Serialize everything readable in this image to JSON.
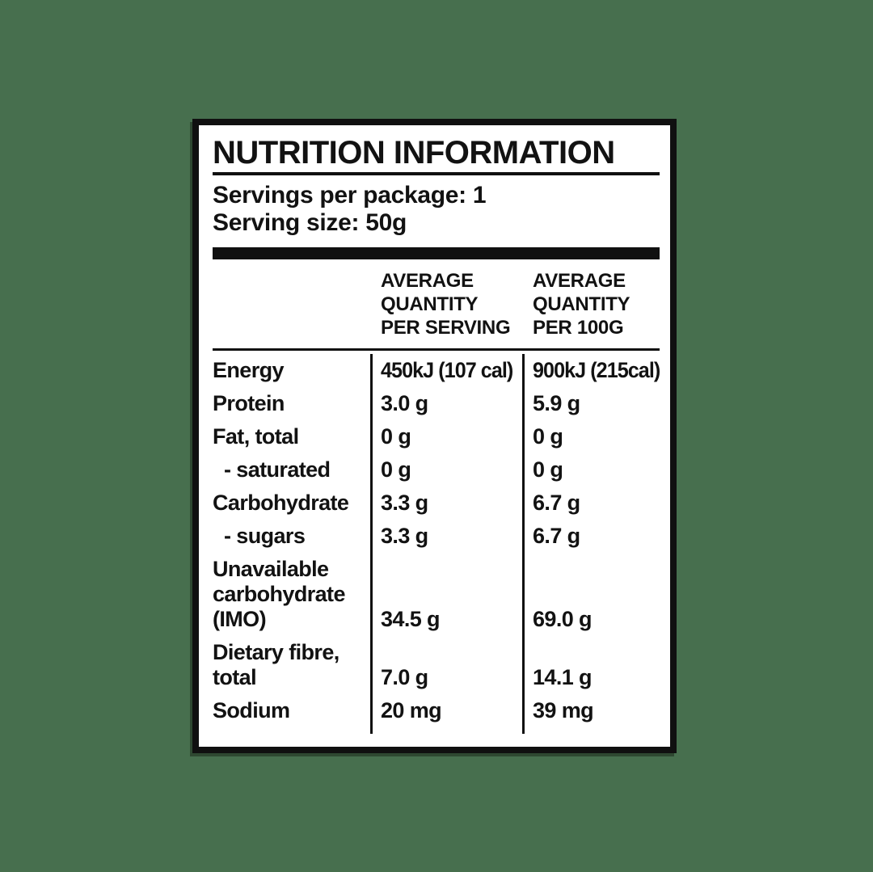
{
  "colors": {
    "background": "#476f4e",
    "panel_background": "#ffffff",
    "ink": "#121212"
  },
  "panel": {
    "title": "NUTRITION INFORMATION",
    "servings_per_package": "Servings per package: 1",
    "serving_size": "Serving size: 50g"
  },
  "table": {
    "headers": {
      "per_serving": "AVERAGE\nQUANTITY\nPER SERVING",
      "per_100g": "AVERAGE\nQUANTITY\nPER 100G"
    },
    "rows": [
      {
        "label": "Energy",
        "per_serving": "450kJ (107 cal)",
        "per_100g": "900kJ (215cal)"
      },
      {
        "label": "Protein",
        "per_serving": "3.0 g",
        "per_100g": "5.9 g"
      },
      {
        "label": "Fat, total",
        "per_serving": "0 g",
        "per_100g": "0 g"
      },
      {
        "label": "- saturated",
        "per_serving": "0 g",
        "per_100g": "0 g"
      },
      {
        "label": "Carbohydrate",
        "per_serving": "3.3 g",
        "per_100g": "6.7 g"
      },
      {
        "label": "- sugars",
        "per_serving": "3.3 g",
        "per_100g": "6.7 g"
      },
      {
        "label": "Unavailable carbohydrate (IMO)",
        "per_serving": "34.5 g",
        "per_100g": "69.0 g"
      },
      {
        "label": "Dietary fibre, total",
        "per_serving": "7.0 g",
        "per_100g": "14.1 g"
      },
      {
        "label": "Sodium",
        "per_serving": "20 mg",
        "per_100g": "39 mg"
      }
    ]
  }
}
